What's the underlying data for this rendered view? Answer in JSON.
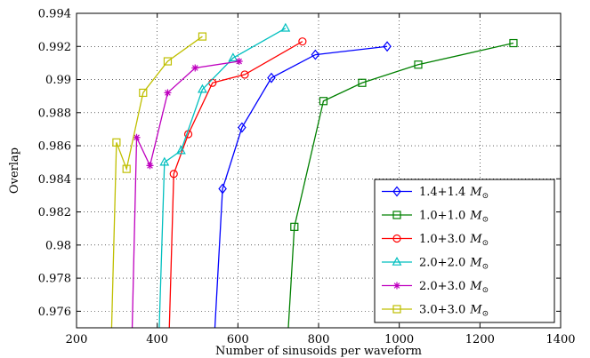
{
  "chart_data": {
    "type": "line",
    "title": "",
    "xlabel": "Number of sinusoids per waveform",
    "ylabel": "Overlap",
    "xlim": [
      200,
      1400
    ],
    "ylim": [
      0.975,
      0.994
    ],
    "xticks": [
      200,
      400,
      600,
      800,
      1000,
      1200,
      1400
    ],
    "yticks": [
      0.976,
      0.978,
      0.98,
      0.982,
      0.984,
      0.986,
      0.988,
      0.99,
      0.992,
      0.994
    ],
    "xtick_labels": [
      "200",
      "400",
      "600",
      "800",
      "1000",
      "1200",
      "1400"
    ],
    "ytick_labels": [
      "0.976",
      "0.978",
      "0.98",
      "0.982",
      "0.984",
      "0.986",
      "0.988",
      "0.99",
      "0.992",
      "0.994"
    ],
    "grid": true,
    "legend_position": "bottom-right",
    "legend_unit": "M",
    "series": [
      {
        "name": "1.4+1.4",
        "color": "#0000ff",
        "marker": "diamond",
        "x": [
          543,
          562,
          610,
          683,
          792,
          970
        ],
        "y": [
          0.975,
          0.9834,
          0.9871,
          0.9901,
          0.9915,
          0.992
        ]
      },
      {
        "name": "1.0+1.0",
        "color": "#008000",
        "marker": "square",
        "x": [
          725,
          740,
          812,
          908,
          1047,
          1283
        ],
        "y": [
          0.975,
          0.9811,
          0.9887,
          0.9898,
          0.9909,
          0.9922
        ]
      },
      {
        "name": "1.0+3.0",
        "color": "#ff0000",
        "marker": "circle",
        "x": [
          430,
          441,
          477,
          537,
          617,
          760
        ],
        "y": [
          0.975,
          0.9843,
          0.9867,
          0.9898,
          0.9903,
          0.9923
        ]
      },
      {
        "name": "2.0+2.0",
        "color": "#00bfbf",
        "marker": "triangle",
        "x": [
          405,
          418,
          459,
          512,
          588,
          718
        ],
        "y": [
          0.975,
          0.985,
          0.9857,
          0.9894,
          0.9913,
          0.9931
        ]
      },
      {
        "name": "2.0+3.0",
        "color": "#bf00bf",
        "marker": "star",
        "x": [
          338,
          349,
          382,
          426,
          494,
          603
        ],
        "y": [
          0.975,
          0.9865,
          0.9848,
          0.9892,
          0.9907,
          0.9911
        ]
      },
      {
        "name": "3.0+3.0",
        "color": "#bfbf00",
        "marker": "square",
        "x": [
          287,
          299,
          324,
          365,
          426,
          512
        ],
        "y": [
          0.975,
          0.9862,
          0.9846,
          0.9892,
          0.9911,
          0.9926
        ]
      }
    ]
  }
}
